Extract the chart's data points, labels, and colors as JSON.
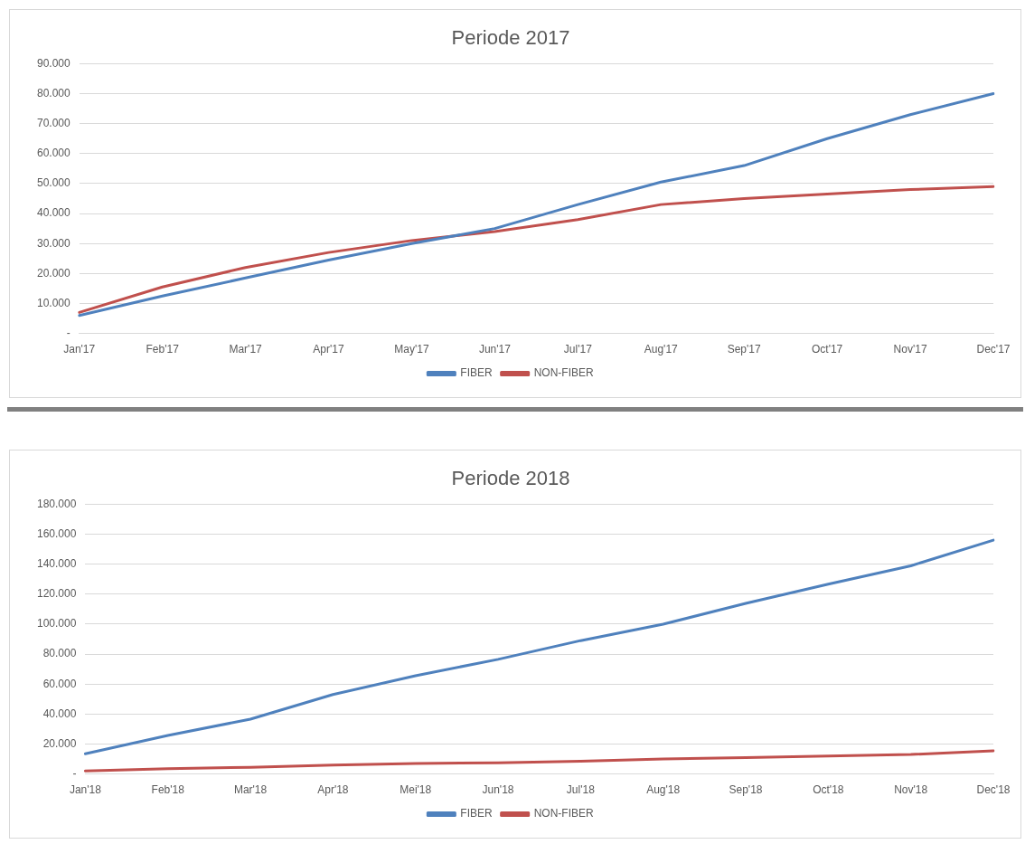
{
  "chart_data": [
    {
      "type": "line",
      "title": "Periode 2017",
      "categories": [
        "Jan'17",
        "Feb'17",
        "Mar'17",
        "Apr'17",
        "May'17",
        "Jun'17",
        "Jul'17",
        "Aug'17",
        "Sep'17",
        "Oct'17",
        "Nov'17",
        "Dec'17"
      ],
      "series": [
        {
          "name": "FIBER",
          "color": "#4f81bd",
          "values": [
            6000,
            12500,
            18500,
            24500,
            30000,
            35000,
            43000,
            50500,
            56000,
            65000,
            73000,
            80000
          ]
        },
        {
          "name": "NON-FIBER",
          "color": "#c0504d",
          "values": [
            7000,
            15500,
            22000,
            27000,
            31000,
            34000,
            38000,
            43000,
            45000,
            46500,
            48000,
            49000
          ]
        }
      ],
      "ylim": [
        0,
        90000
      ],
      "yticks": [
        {
          "value": 0,
          "label": "-"
        },
        {
          "value": 10000,
          "label": "10.000"
        },
        {
          "value": 20000,
          "label": "20.000"
        },
        {
          "value": 30000,
          "label": "30.000"
        },
        {
          "value": 40000,
          "label": "40.000"
        },
        {
          "value": 50000,
          "label": "50.000"
        },
        {
          "value": 60000,
          "label": "60.000"
        },
        {
          "value": 70000,
          "label": "70.000"
        },
        {
          "value": 80000,
          "label": "80.000"
        },
        {
          "value": 90000,
          "label": "90.000"
        }
      ],
      "grid": "y",
      "legend": "bottom",
      "marker": "none",
      "line_style": "solid"
    },
    {
      "type": "line",
      "title": "Periode 2018",
      "categories": [
        "Jan'18",
        "Feb'18",
        "Mar'18",
        "Apr'18",
        "Mei'18",
        "Jun'18",
        "Jul'18",
        "Aug'18",
        "Sep'18",
        "Oct'18",
        "Nov'18",
        "Dec'18"
      ],
      "series": [
        {
          "name": "FIBER",
          "color": "#4f81bd",
          "values": [
            13500,
            25700,
            36600,
            53000,
            65600,
            76500,
            89000,
            100000,
            113800,
            126700,
            138900,
            156000
          ]
        },
        {
          "name": "NON-FIBER",
          "color": "#c0504d",
          "values": [
            2000,
            3500,
            4500,
            6000,
            7000,
            7500,
            8500,
            10000,
            11000,
            12000,
            13000,
            15500
          ]
        }
      ],
      "ylim": [
        0,
        180000
      ],
      "yticks": [
        {
          "value": 0,
          "label": "-"
        },
        {
          "value": 20000,
          "label": "20.000"
        },
        {
          "value": 40000,
          "label": "40.000"
        },
        {
          "value": 60000,
          "label": "60.000"
        },
        {
          "value": 80000,
          "label": "80.000"
        },
        {
          "value": 100000,
          "label": "100.000"
        },
        {
          "value": 120000,
          "label": "120.000"
        },
        {
          "value": 140000,
          "label": "140.000"
        },
        {
          "value": 160000,
          "label": "160.000"
        },
        {
          "value": 180000,
          "label": "180.000"
        }
      ],
      "grid": "y",
      "legend": "bottom",
      "marker": "none",
      "line_style": "solid"
    }
  ]
}
